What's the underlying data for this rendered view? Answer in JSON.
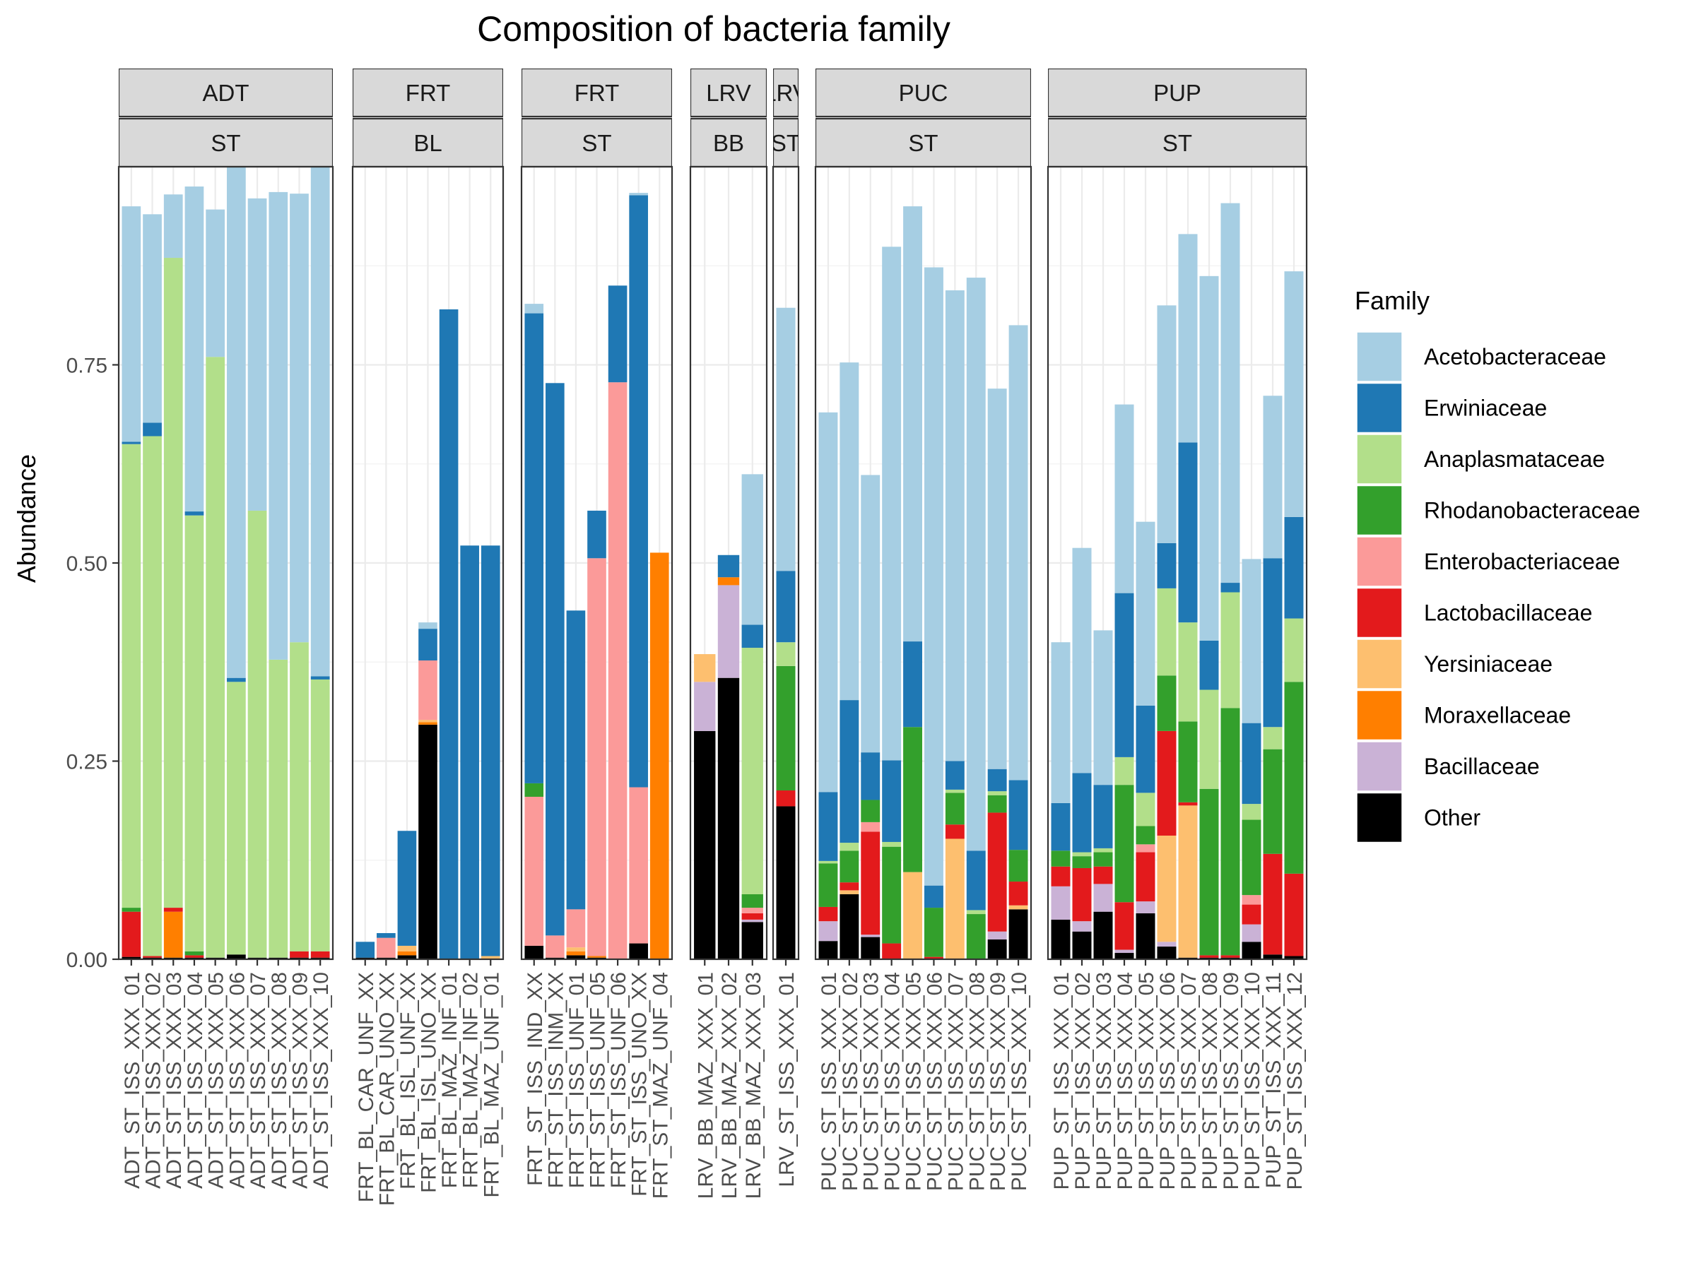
{
  "chart_data": {
    "type": "bar",
    "stacked": true,
    "title": "Composition of bacteria family",
    "xlabel": "",
    "ylabel": "Abundance",
    "ylim": [
      0,
      1
    ],
    "y_ticks": [
      "0.00",
      "0.25",
      "0.50",
      "0.75"
    ],
    "grid": true,
    "legend": {
      "title": "Family",
      "position": "right",
      "entries": [
        "Acetobacteraceae",
        "Erwiniaceae",
        "Anaplasmataceae",
        "Rhodanobacteraceae",
        "Enterobacteriaceae",
        "Lactobacillaceae",
        "Yersiniaceae",
        "Moraxellaceae",
        "Bacillaceae",
        "Other"
      ]
    },
    "colors": {
      "Acetobacteraceae": "#a6cee3",
      "Erwiniaceae": "#1f78b4",
      "Anaplasmataceae": "#b2df8a",
      "Rhodanobacteraceae": "#33a02c",
      "Enterobacteriaceae": "#fb9a99",
      "Lactobacillaceae": "#e31a1c",
      "Yersiniaceae": "#fdbf6f",
      "Moraxellaceae": "#ff7f00",
      "Bacillaceae": "#cab2d6",
      "Other": "#000000"
    },
    "series_order_bottom_to_top": [
      "Other",
      "Bacillaceae",
      "Moraxellaceae",
      "Yersiniaceae",
      "Lactobacillaceae",
      "Enterobacteriaceae",
      "Rhodanobacteraceae",
      "Anaplasmataceae",
      "Erwiniaceae",
      "Acetobacteraceae"
    ],
    "panels": [
      {
        "strip_top": "ADT",
        "strip_bottom": "ST",
        "samples": [
          {
            "label": "ADT_ST_ISS_XXX_01",
            "values": {
              "Other": 0.003,
              "Lactobacillaceae": 0.057,
              "Rhodanobacteraceae": 0.005,
              "Anaplasmataceae": 0.585,
              "Erwiniaceae": 0.003,
              "Acetobacteraceae": 0.297
            }
          },
          {
            "label": "ADT_ST_ISS_XXX_02",
            "values": {
              "Other": 0.002,
              "Lactobacillaceae": 0.002,
              "Anaplasmataceae": 0.656,
              "Erwiniaceae": 0.017,
              "Acetobacteraceae": 0.263
            }
          },
          {
            "label": "ADT_ST_ISS_XXX_03",
            "values": {
              "Other": 0.002,
              "Moraxellaceae": 0.058,
              "Lactobacillaceae": 0.005,
              "Anaplasmataceae": 0.82,
              "Acetobacteraceae": 0.08
            }
          },
          {
            "label": "ADT_ST_ISS_XXX_04",
            "values": {
              "Other": 0.002,
              "Lactobacillaceae": 0.003,
              "Rhodanobacteraceae": 0.005,
              "Anaplasmataceae": 0.55,
              "Erwiniaceae": 0.005,
              "Acetobacteraceae": 0.41
            }
          },
          {
            "label": "ADT_ST_ISS_XXX_05",
            "values": {
              "Other": 0.002,
              "Anaplasmataceae": 0.758,
              "Acetobacteraceae": 0.186
            }
          },
          {
            "label": "ADT_ST_ISS_XXX_06",
            "values": {
              "Other": 0.006,
              "Anaplasmataceae": 0.344,
              "Erwiniaceae": 0.005,
              "Acetobacteraceae": 0.645
            }
          },
          {
            "label": "ADT_ST_ISS_XXX_07",
            "values": {
              "Other": 0.002,
              "Anaplasmataceae": 0.564,
              "Acetobacteraceae": 0.394
            }
          },
          {
            "label": "ADT_ST_ISS_XXX_08",
            "values": {
              "Other": 0.002,
              "Anaplasmataceae": 0.376,
              "Acetobacteraceae": 0.59
            }
          },
          {
            "label": "ADT_ST_ISS_XXX_09",
            "values": {
              "Other": 0.002,
              "Lactobacillaceae": 0.008,
              "Anaplasmataceae": 0.39,
              "Acetobacteraceae": 0.566
            }
          },
          {
            "label": "ADT_ST_ISS_XXX_10",
            "values": {
              "Other": 0.002,
              "Lactobacillaceae": 0.008,
              "Anaplasmataceae": 0.343,
              "Erwiniaceae": 0.004,
              "Acetobacteraceae": 0.643
            }
          }
        ]
      },
      {
        "strip_top": "FRT",
        "strip_bottom": "BL",
        "samples": [
          {
            "label": "FRT_BL_CAR_UNF_XX",
            "values": {
              "Other": 0.002,
              "Erwiniaceae": 0.02
            }
          },
          {
            "label": "FRT_BL_CAR_UNO_XX",
            "values": {
              "Other": 0.002,
              "Enterobacteriaceae": 0.025,
              "Erwiniaceae": 0.006
            }
          },
          {
            "label": "FRT_BL_ISL_UNF_XX",
            "values": {
              "Other": 0.005,
              "Moraxellaceae": 0.005,
              "Yersiniaceae": 0.007,
              "Erwiniaceae": 0.145
            }
          },
          {
            "label": "FRT_BL_ISL_UNO_XX",
            "values": {
              "Other": 0.296,
              "Moraxellaceae": 0.003,
              "Yersiniaceae": 0.003,
              "Enterobacteriaceae": 0.075,
              "Erwiniaceae": 0.04,
              "Acetobacteraceae": 0.008
            }
          },
          {
            "label": "FRT_BL_MAZ_INF_01",
            "values": {
              "Erwiniaceae": 0.82
            }
          },
          {
            "label": "FRT_BL_MAZ_INF_02",
            "values": {
              "Erwiniaceae": 0.522
            }
          },
          {
            "label": "FRT_BL_MAZ_UNF_01",
            "values": {
              "Yersiniaceae": 0.004,
              "Erwiniaceae": 0.518
            }
          }
        ]
      },
      {
        "strip_top": "FRT",
        "strip_bottom": "ST",
        "samples": [
          {
            "label": "FRT_ST_ISS_IND_XX",
            "values": {
              "Other": 0.017,
              "Enterobacteriaceae": 0.188,
              "Rhodanobacteraceae": 0.017,
              "Erwiniaceae": 0.593,
              "Acetobacteraceae": 0.012
            }
          },
          {
            "label": "FRT_ST_ISS_INM_XX",
            "values": {
              "Other": 0.002,
              "Enterobacteriaceae": 0.028,
              "Erwiniaceae": 0.697
            }
          },
          {
            "label": "FRT_ST_ISS_UNF_01",
            "values": {
              "Other": 0.005,
              "Moraxellaceae": 0.005,
              "Yersiniaceae": 0.005,
              "Enterobacteriaceae": 0.048,
              "Erwiniaceae": 0.377
            }
          },
          {
            "label": "FRT_ST_ISS_UNF_05",
            "values": {
              "Other": 0.002,
              "Moraxellaceae": 0.002,
              "Enterobacteriaceae": 0.502,
              "Erwiniaceae": 0.06
            }
          },
          {
            "label": "FRT_ST_ISS_UNF_06",
            "values": {
              "Enterobacteriaceae": 0.728,
              "Erwiniaceae": 0.122
            }
          },
          {
            "label": "FRT_ST_ISS_UNO_XX",
            "values": {
              "Other": 0.02,
              "Enterobacteriaceae": 0.197,
              "Erwiniaceae": 0.747,
              "Acetobacteraceae": 0.003
            }
          },
          {
            "label": "FRT_ST_MAZ_UNF_04",
            "values": {
              "Moraxellaceae": 0.513
            }
          }
        ]
      },
      {
        "strip_top": "LRV",
        "strip_bottom": "BB",
        "samples": [
          {
            "label": "LRV_BB_MAZ_XXX_01",
            "values": {
              "Other": 0.288,
              "Bacillaceae": 0.062,
              "Yersiniaceae": 0.035
            }
          },
          {
            "label": "LRV_BB_MAZ_XXX_02",
            "values": {
              "Other": 0.355,
              "Bacillaceae": 0.117,
              "Moraxellaceae": 0.01,
              "Erwiniaceae": 0.028
            }
          },
          {
            "label": "LRV_BB_MAZ_XXX_03",
            "values": {
              "Other": 0.047,
              "Bacillaceae": 0.003,
              "Lactobacillaceae": 0.008,
              "Enterobacteriaceae": 0.007,
              "Rhodanobacteraceae": 0.017,
              "Anaplasmataceae": 0.311,
              "Erwiniaceae": 0.029,
              "Acetobacteraceae": 0.19
            }
          }
        ]
      },
      {
        "strip_top": "LRV",
        "strip_bottom": "ST",
        "samples": [
          {
            "label": "LRV_ST_ISS_XXX_01",
            "values": {
              "Other": 0.193,
              "Lactobacillaceae": 0.02,
              "Rhodanobacteraceae": 0.157,
              "Anaplasmataceae": 0.03,
              "Erwiniaceae": 0.09,
              "Acetobacteraceae": 0.332
            }
          }
        ]
      },
      {
        "strip_top": "PUC",
        "strip_bottom": "ST",
        "samples": [
          {
            "label": "PUC_ST_ISS_XXX_01",
            "values": {
              "Other": 0.023,
              "Bacillaceae": 0.025,
              "Lactobacillaceae": 0.018,
              "Rhodanobacteraceae": 0.055,
              "Anaplasmataceae": 0.003,
              "Erwiniaceae": 0.087,
              "Acetobacteraceae": 0.479
            }
          },
          {
            "label": "PUC_ST_ISS_XXX_02",
            "values": {
              "Other": 0.082,
              "Yersiniaceae": 0.005,
              "Lactobacillaceae": 0.01,
              "Rhodanobacteraceae": 0.04,
              "Anaplasmataceae": 0.01,
              "Erwiniaceae": 0.18,
              "Acetobacteraceae": 0.426
            }
          },
          {
            "label": "PUC_ST_ISS_XXX_03",
            "values": {
              "Other": 0.028,
              "Bacillaceae": 0.003,
              "Lactobacillaceae": 0.13,
              "Enterobacteriaceae": 0.012,
              "Rhodanobacteraceae": 0.028,
              "Erwiniaceae": 0.06,
              "Acetobacteraceae": 0.35
            }
          },
          {
            "label": "PUC_ST_ISS_XXX_04",
            "values": {
              "Lactobacillaceae": 0.02,
              "Rhodanobacteraceae": 0.122,
              "Anaplasmataceae": 0.006,
              "Erwiniaceae": 0.103,
              "Acetobacteraceae": 0.648
            }
          },
          {
            "label": "PUC_ST_ISS_XXX_05",
            "values": {
              "Yersiniaceae": 0.11,
              "Rhodanobacteraceae": 0.183,
              "Erwiniaceae": 0.108,
              "Acetobacteraceae": 0.549
            }
          },
          {
            "label": "PUC_ST_ISS_XXX_06",
            "values": {
              "Lactobacillaceae": 0.003,
              "Rhodanobacteraceae": 0.062,
              "Erwiniaceae": 0.028,
              "Acetobacteraceae": 0.78
            }
          },
          {
            "label": "PUC_ST_ISS_XXX_07",
            "values": {
              "Yersiniaceae": 0.152,
              "Lactobacillaceae": 0.018,
              "Rhodanobacteraceae": 0.04,
              "Anaplasmataceae": 0.004,
              "Erwiniaceae": 0.036,
              "Acetobacteraceae": 0.594
            }
          },
          {
            "label": "PUC_ST_ISS_XXX_08",
            "values": {
              "Rhodanobacteraceae": 0.057,
              "Anaplasmataceae": 0.005,
              "Erwiniaceae": 0.075,
              "Acetobacteraceae": 0.723
            }
          },
          {
            "label": "PUC_ST_ISS_XXX_09",
            "values": {
              "Other": 0.025,
              "Bacillaceae": 0.01,
              "Lactobacillaceae": 0.15,
              "Rhodanobacteraceae": 0.022,
              "Anaplasmataceae": 0.005,
              "Erwiniaceae": 0.028,
              "Acetobacteraceae": 0.48
            }
          },
          {
            "label": "PUC_ST_ISS_XXX_10",
            "values": {
              "Other": 0.063,
              "Yersiniaceae": 0.005,
              "Lactobacillaceae": 0.03,
              "Rhodanobacteraceae": 0.04,
              "Erwiniaceae": 0.088,
              "Acetobacteraceae": 0.574
            }
          }
        ]
      },
      {
        "strip_top": "PUP",
        "strip_bottom": "ST",
        "samples": [
          {
            "label": "PUP_ST_ISS_XXX_01",
            "values": {
              "Other": 0.05,
              "Bacillaceae": 0.042,
              "Lactobacillaceae": 0.025,
              "Rhodanobacteraceae": 0.02,
              "Erwiniaceae": 0.06,
              "Acetobacteraceae": 0.203
            }
          },
          {
            "label": "PUP_ST_ISS_XXX_02",
            "values": {
              "Other": 0.035,
              "Bacillaceae": 0.013,
              "Lactobacillaceae": 0.067,
              "Rhodanobacteraceae": 0.015,
              "Anaplasmataceae": 0.005,
              "Erwiniaceae": 0.1,
              "Acetobacteraceae": 0.284
            }
          },
          {
            "label": "PUP_ST_ISS_XXX_03",
            "values": {
              "Other": 0.06,
              "Bacillaceae": 0.035,
              "Lactobacillaceae": 0.022,
              "Rhodanobacteraceae": 0.018,
              "Anaplasmataceae": 0.005,
              "Erwiniaceae": 0.08,
              "Acetobacteraceae": 0.195
            }
          },
          {
            "label": "PUP_ST_ISS_XXX_04",
            "values": {
              "Other": 0.008,
              "Bacillaceae": 0.004,
              "Lactobacillaceae": 0.06,
              "Rhodanobacteraceae": 0.148,
              "Anaplasmataceae": 0.035,
              "Erwiniaceae": 0.207,
              "Acetobacteraceae": 0.238
            }
          },
          {
            "label": "PUP_ST_ISS_XXX_05",
            "values": {
              "Other": 0.058,
              "Bacillaceae": 0.015,
              "Enterobacteriaceae": 0.01,
              "Lactobacillaceae": 0.062,
              "Rhodanobacteraceae": 0.023,
              "Anaplasmataceae": 0.042,
              "Erwiniaceae": 0.11,
              "Acetobacteraceae": 0.232
            }
          },
          {
            "label": "PUP_ST_ISS_XXX_06",
            "values": {
              "Other": 0.016,
              "Bacillaceae": 0.006,
              "Yersiniaceae": 0.134,
              "Lactobacillaceae": 0.132,
              "Rhodanobacteraceae": 0.07,
              "Anaplasmataceae": 0.11,
              "Erwiniaceae": 0.057,
              "Acetobacteraceae": 0.3
            }
          },
          {
            "label": "PUP_ST_ISS_XXX_07",
            "values": {
              "Other": 0.002,
              "Yersiniaceae": 0.192,
              "Lactobacillaceae": 0.004,
              "Rhodanobacteraceae": 0.102,
              "Anaplasmataceae": 0.125,
              "Erwiniaceae": 0.227,
              "Acetobacteraceae": 0.263
            }
          },
          {
            "label": "PUP_ST_ISS_XXX_08",
            "values": {
              "Other": 0.002,
              "Lactobacillaceae": 0.003,
              "Rhodanobacteraceae": 0.21,
              "Anaplasmataceae": 0.125,
              "Erwiniaceae": 0.062,
              "Acetobacteraceae": 0.46
            }
          },
          {
            "label": "PUP_ST_ISS_XXX_09",
            "values": {
              "Other": 0.002,
              "Lactobacillaceae": 0.003,
              "Rhodanobacteraceae": 0.312,
              "Anaplasmataceae": 0.146,
              "Erwiniaceae": 0.012,
              "Acetobacteraceae": 0.479
            }
          },
          {
            "label": "PUP_ST_ISS_XXX_10",
            "values": {
              "Other": 0.022,
              "Bacillaceae": 0.022,
              "Lactobacillaceae": 0.025,
              "Enterobacteriaceae": 0.012,
              "Rhodanobacteraceae": 0.095,
              "Anaplasmataceae": 0.02,
              "Erwiniaceae": 0.102,
              "Acetobacteraceae": 0.207
            }
          },
          {
            "label": "PUP_ST_ISS_XXX_11",
            "values": {
              "Other": 0.006,
              "Lactobacillaceae": 0.127,
              "Rhodanobacteraceae": 0.132,
              "Anaplasmataceae": 0.028,
              "Erwiniaceae": 0.213,
              "Acetobacteraceae": 0.205
            }
          },
          {
            "label": "PUP_ST_ISS_XXX_12",
            "values": {
              "Other": 0.004,
              "Lactobacillaceae": 0.104,
              "Rhodanobacteraceae": 0.242,
              "Anaplasmataceae": 0.08,
              "Erwiniaceae": 0.128,
              "Acetobacteraceae": 0.31
            }
          }
        ]
      }
    ]
  }
}
